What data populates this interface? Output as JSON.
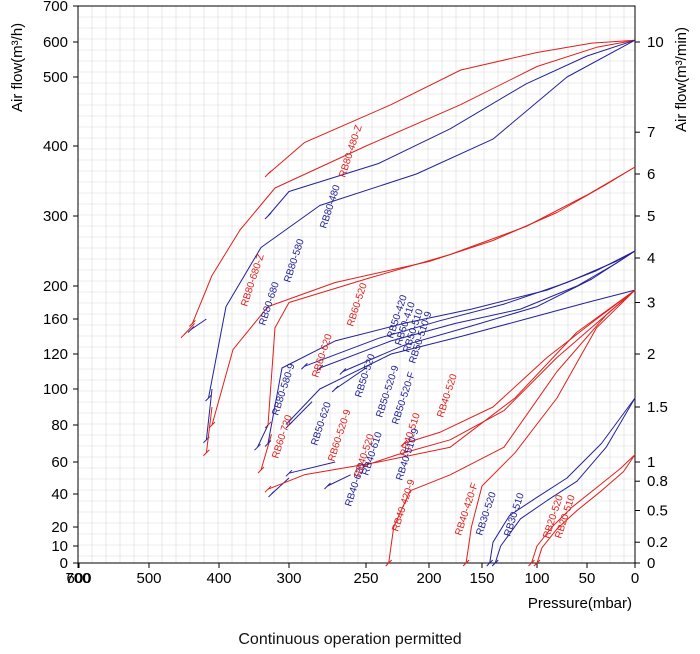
{
  "caption": "Continuous operation permitted",
  "chart_data": {
    "type": "line",
    "xlabel": "Pressure(mbar)",
    "ylabel_left": "Air flow(m³/h)",
    "ylabel_right": "Air flow(m³/min)",
    "xlim": [
      700,
      0
    ],
    "x_ticks": [
      "700",
      "600",
      "500",
      "400",
      "300",
      "250",
      "200",
      "150",
      "100",
      "50",
      "0"
    ],
    "y_ticks_left": [
      "700",
      "600",
      "500",
      "400",
      "300",
      "200",
      "160",
      "120",
      "100",
      "80",
      "60",
      "40",
      "20",
      "10",
      "0"
    ],
    "y_ticks_right": [
      "10",
      "7",
      "6",
      "5",
      "4",
      "3",
      "2",
      "1.5",
      "1",
      "0.8",
      "0.5",
      "0.2",
      "0"
    ],
    "colors": {
      "red": "#e0201c",
      "blue": "#22229a"
    },
    "series": [
      {
        "name": "RB80-480-Z",
        "color": "red",
        "x": [
          330,
          290,
          230,
          170,
          100,
          45,
          0
        ],
        "y": [
          360,
          405,
          460,
          520,
          570,
          597,
          605
        ],
        "label_x": 345,
        "label_y": 178
      },
      {
        "name": "RB80-580-Z",
        "color": "red",
        "x": [
          438,
          410,
          370,
          320,
          250,
          170,
          100,
          40,
          0
        ],
        "y": [
          155,
          215,
          280,
          340,
          400,
          460,
          530,
          585,
          605
        ]
      },
      {
        "name": "RB80-680-Z",
        "color": "red",
        "x": [
          450,
          435
        ],
        "y": [
          142,
          155
        ],
        "label_x": 247,
        "label_y": 307
      },
      {
        "name": "RB80-480",
        "color": "blue",
        "x": [
          330,
          300,
          240,
          180,
          110,
          50,
          0
        ],
        "y": [
          300,
          335,
          375,
          425,
          490,
          560,
          605
        ],
        "label_x": 326,
        "label_y": 229
      },
      {
        "name": "RB80-580",
        "color": "blue",
        "x": [
          415,
          390,
          340,
          280,
          210,
          140,
          70,
          0
        ],
        "y": [
          95,
          175,
          255,
          315,
          360,
          410,
          500,
          605
        ],
        "label_x": 290,
        "label_y": 283
      },
      {
        "name": "RB80-680",
        "color": "blue",
        "x": [
          440,
          418
        ],
        "y": [
          148,
          160
        ],
        "label_x": 265,
        "label_y": 326
      },
      {
        "name": "RB80-580-9",
        "color": "blue",
        "x": [
          418,
          410
        ],
        "y": [
          72,
          100
        ],
        "label_x": 278,
        "label_y": 416
      },
      {
        "name": "RB60-720",
        "color": "red",
        "x": [
          418,
          410
        ],
        "y": [
          65,
          90
        ],
        "label_x": 278,
        "label_y": 459
      },
      {
        "name": "RB60-620",
        "color": "red",
        "x": [
          410,
          380,
          330,
          270,
          200,
          140,
          80,
          30,
          0
        ],
        "y": [
          80,
          125,
          175,
          205,
          235,
          265,
          305,
          345,
          370
        ],
        "label_x": 318,
        "label_y": 378
      },
      {
        "name": "RB60-520",
        "color": "red",
        "x": [
          330,
          320,
          300,
          250,
          180,
          110,
          50,
          0
        ],
        "y": [
          80,
          150,
          180,
          210,
          245,
          285,
          330,
          370
        ],
        "label_x": 353,
        "label_y": 327
      },
      {
        "name": "RB60-520-9",
        "color": "red",
        "x": [
          340,
          325
        ],
        "y": [
          55,
          75
        ],
        "label_x": 334,
        "label_y": 462
      },
      {
        "name": "RB50-620",
        "color": "blue",
        "x": [
          345,
          330
        ],
        "y": [
          68,
          80
        ],
        "label_x": 317,
        "label_y": 446
      },
      {
        "name": "RB50-520",
        "color": "blue",
        "x": [
          330,
          310,
          270,
          220,
          160,
          90,
          40,
          0
        ],
        "y": [
          70,
          112,
          135,
          155,
          172,
          195,
          222,
          250
        ],
        "label_x": 361,
        "label_y": 398
      },
      {
        "name": "RB50-420",
        "color": "blue",
        "x": [
          290,
          240,
          190,
          130,
          70,
          20,
          0
        ],
        "y": [
          113,
          138,
          158,
          178,
          205,
          235,
          250
        ],
        "label_x": 393,
        "label_y": 339
      },
      {
        "name": "RB50-410",
        "color": "blue",
        "x": [
          280,
          230,
          175,
          115,
          60,
          20,
          0
        ],
        "y": [
          112,
          135,
          155,
          172,
          200,
          232,
          250
        ],
        "label_x": 401,
        "label_y": 346
      },
      {
        "name": "RB50-510",
        "color": "blue",
        "x": [
          265,
          220,
          160,
          100,
          45,
          0
        ],
        "y": [
          110,
          130,
          152,
          175,
          210,
          250
        ],
        "label_x": 409,
        "label_y": 353
      },
      {
        "name": "RB50-510-9",
        "color": "blue",
        "x": [
          270,
          250
        ],
        "y": [
          100,
          112
        ],
        "label_x": 415,
        "label_y": 364
      },
      {
        "name": "RB50-520-9",
        "color": "blue",
        "x": [
          300,
          285
        ],
        "y": [
          80,
          93
        ],
        "label_x": 382,
        "label_y": 418
      },
      {
        "name": "RB50-520-F",
        "color": "blue",
        "x": [
          300,
          280,
          230,
          170,
          110,
          50,
          0
        ],
        "y": [
          82,
          100,
          120,
          140,
          160,
          180,
          195
        ],
        "label_x": 398,
        "label_y": 425
      },
      {
        "name": "RB40-620",
        "color": "blue",
        "x": [
          325,
          300
        ],
        "y": [
          40,
          50
        ],
        "label_x": 351,
        "label_y": 507
      },
      {
        "name": "RB40-610",
        "color": "blue",
        "x": [
          300,
          270
        ],
        "y": [
          53,
          60
        ],
        "label_x": 368,
        "label_y": 476
      },
      {
        "name": "RB40-520",
        "color": "red",
        "x": [
          330,
          290,
          240,
          180,
          120,
          60,
          0
        ],
        "y": [
          43,
          52,
          60,
          68,
          95,
          145,
          195
        ],
        "label_x": 360,
        "label_y": 478
      },
      {
        "name": "RB40-510",
        "color": "red",
        "x": [
          250,
          225,
          180,
          130,
          80,
          30,
          0
        ],
        "y": [
          58,
          64,
          72,
          88,
          118,
          165,
          195
        ],
        "label_x": 406,
        "label_y": 457
      },
      {
        "name": "RB40-520",
        "color": "red",
        "x": [
          220,
          190,
          140,
          90,
          40,
          0
        ],
        "y": [
          70,
          76,
          90,
          118,
          160,
          195
        ],
        "label_x": 443,
        "label_y": 418
      },
      {
        "name": "RB40-510-9",
        "color": "blue",
        "x": [
          275,
          260
        ],
        "y": [
          45,
          52
        ],
        "label_x": 402,
        "label_y": 481
      },
      {
        "name": "RB40-420-9",
        "color": "red",
        "x": [
          232,
          228,
          215,
          180,
          130,
          80,
          30,
          0
        ],
        "y": [
          0,
          20,
          42,
          52,
          68,
          110,
          165,
          195
        ],
        "label_x": 398,
        "label_y": 532
      },
      {
        "name": "RB40-420-F",
        "color": "red",
        "x": [
          165,
          160,
          150,
          120,
          80,
          40,
          0
        ],
        "y": [
          0,
          20,
          45,
          65,
          95,
          150,
          195
        ],
        "label_x": 461,
        "label_y": 536
      },
      {
        "name": "RB30-520",
        "color": "blue",
        "x": [
          143,
          140,
          125,
          100,
          70,
          35,
          0
        ],
        "y": [
          0,
          12,
          27,
          38,
          50,
          70,
          95
        ],
        "label_x": 482,
        "label_y": 536
      },
      {
        "name": "RB30-510",
        "color": "blue",
        "x": [
          138,
          133,
          115,
          90,
          60,
          30,
          0
        ],
        "y": [
          0,
          10,
          25,
          36,
          48,
          68,
          95
        ],
        "label_x": 510,
        "label_y": 537
      },
      {
        "name": "RB20-520",
        "color": "red",
        "x": [
          105,
          100,
          85,
          65,
          40,
          15,
          0
        ],
        "y": [
          0,
          10,
          20,
          32,
          44,
          56,
          64
        ],
        "label_x": 549,
        "label_y": 539
      },
      {
        "name": "RB20-510",
        "color": "red",
        "x": [
          100,
          95,
          80,
          60,
          35,
          12,
          0
        ],
        "y": [
          0,
          9,
          19,
          30,
          42,
          54,
          64
        ],
        "label_x": 561,
        "label_y": 539
      }
    ]
  }
}
